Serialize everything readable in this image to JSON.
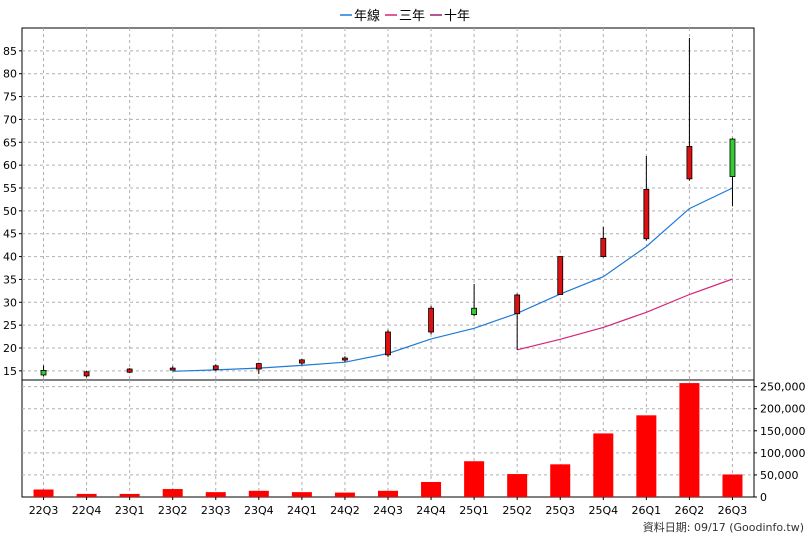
{
  "legend": [
    {
      "label": "年線",
      "color": "#1f7bd6"
    },
    {
      "label": "三年",
      "color": "#d6247a"
    },
    {
      "label": "十年",
      "color": "#9a2070"
    }
  ],
  "source_note": "資料日期: 09/17  (Goodinfo.tw)",
  "chart_data": [
    {
      "type": "candlestick",
      "categories": [
        "22Q3",
        "22Q4",
        "23Q1",
        "23Q2",
        "23Q3",
        "23Q4",
        "24Q1",
        "24Q2",
        "24Q3",
        "24Q4",
        "25Q1",
        "25Q2",
        "25Q3",
        "25Q4",
        "26Q1",
        "26Q2",
        "26Q3"
      ],
      "ylim": [
        13,
        90
      ],
      "yticks": [
        15,
        20,
        25,
        30,
        35,
        40,
        45,
        50,
        55,
        60,
        65,
        70,
        75,
        80,
        85
      ],
      "grid": true,
      "candles": [
        {
          "open": 14.1,
          "close": 15.1,
          "high": 16.2,
          "low": 13.8
        },
        {
          "open": 14.8,
          "close": 13.9,
          "high": 15.0,
          "low": 13.6
        },
        {
          "open": 15.4,
          "close": 14.7,
          "high": 15.6,
          "low": 14.5
        },
        {
          "open": 15.6,
          "close": 15.4,
          "high": 16.0,
          "low": 15.2
        },
        {
          "open": 16.1,
          "close": 15.3,
          "high": 16.4,
          "low": 15.0
        },
        {
          "open": 16.6,
          "close": 15.4,
          "high": 16.8,
          "low": 14.3
        },
        {
          "open": 17.4,
          "close": 16.7,
          "high": 17.6,
          "low": 16.3
        },
        {
          "open": 17.8,
          "close": 17.4,
          "high": 18.2,
          "low": 16.9
        },
        {
          "open": 23.5,
          "close": 18.5,
          "high": 24.0,
          "low": 18.0
        },
        {
          "open": 28.7,
          "close": 23.5,
          "high": 29.2,
          "low": 23.0
        },
        {
          "open": 27.3,
          "close": 28.7,
          "high": 34.0,
          "low": 27.0
        },
        {
          "open": 31.6,
          "close": 27.5,
          "high": 31.9,
          "low": 19.6
        },
        {
          "open": 40.0,
          "close": 31.7,
          "high": 40.1,
          "low": 31.6
        },
        {
          "open": 44.0,
          "close": 40.0,
          "high": 46.5,
          "low": 39.8
        },
        {
          "open": 54.7,
          "close": 43.9,
          "high": 62.0,
          "low": 43.5
        },
        {
          "open": 64.1,
          "close": 57.0,
          "high": 87.8,
          "low": 56.6
        },
        {
          "open": 57.5,
          "close": 65.7,
          "high": 65.9,
          "low": 51.0
        }
      ],
      "candle_colors": {
        "up": "#33cc33",
        "down": "#dd1111"
      },
      "lines": [
        {
          "name": "年線",
          "color": "#1f7bd6",
          "start_index": 3,
          "values": [
            14.9,
            15.2,
            15.6,
            16.2,
            16.9,
            18.8,
            22.0,
            24.3,
            27.6,
            31.8,
            35.6,
            42.2,
            50.5,
            55.0
          ]
        },
        {
          "name": "三年",
          "color": "#d6247a",
          "start_index": 11,
          "values": [
            19.6,
            21.9,
            24.5,
            27.8,
            31.7,
            35.1
          ]
        }
      ]
    },
    {
      "type": "bar",
      "categories": [
        "22Q3",
        "22Q4",
        "23Q1",
        "23Q2",
        "23Q3",
        "23Q4",
        "24Q1",
        "24Q2",
        "24Q3",
        "24Q4",
        "25Q1",
        "25Q2",
        "25Q3",
        "25Q4",
        "26Q1",
        "26Q2",
        "26Q3"
      ],
      "values": [
        17000,
        7000,
        7000,
        18000,
        11000,
        14000,
        11000,
        10000,
        14000,
        34000,
        81000,
        52000,
        74000,
        144000,
        185000,
        258000,
        51000
      ],
      "color": "#ff0000",
      "ylim": [
        0,
        265000
      ],
      "yticks": [
        {
          "value": 0,
          "label": "0"
        },
        {
          "value": 50000,
          "label": "50,000"
        },
        {
          "value": 100000,
          "label": "100,000"
        },
        {
          "value": 150000,
          "label": "150,000"
        },
        {
          "value": 200000,
          "label": "200,000"
        },
        {
          "value": 250000,
          "label": "250,000"
        }
      ],
      "grid": true
    }
  ]
}
